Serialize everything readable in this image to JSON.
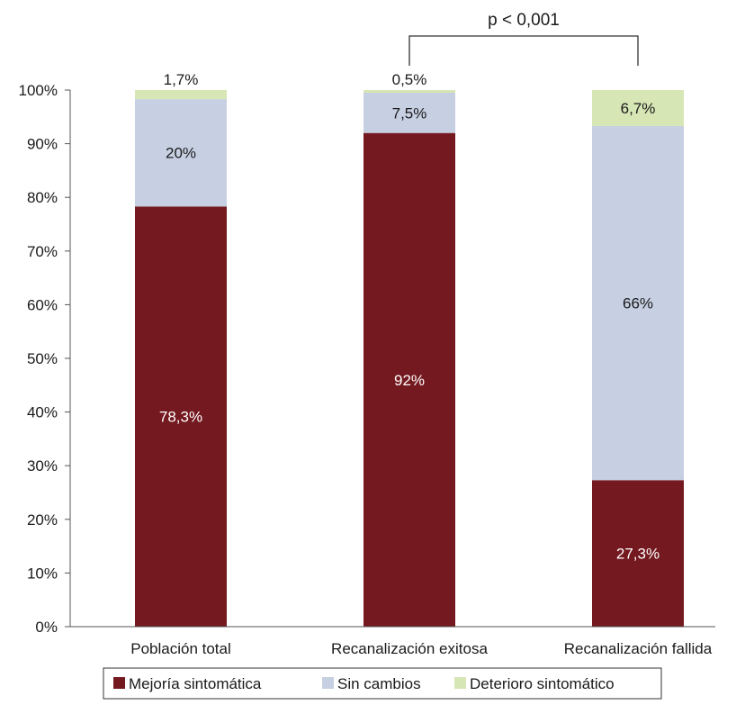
{
  "chart_data": {
    "type": "bar",
    "stacked": true,
    "categories": [
      "Población total",
      "Recanalización exitosa",
      "Recanalización fallida"
    ],
    "series": [
      {
        "name": "Mejoría sintomática",
        "color": "#74191f",
        "values": [
          78.3,
          92,
          27.3
        ],
        "labels": [
          "78,3%",
          "92%",
          "27,3%"
        ],
        "label_color": "#ffffff"
      },
      {
        "name": "Sin cambios",
        "color": "#c7d0e3",
        "values": [
          20,
          7.5,
          66
        ],
        "labels": [
          "20%",
          "7,5%",
          "66%"
        ],
        "label_color": "#1a1a1a"
      },
      {
        "name": "Deterioro sintomático",
        "color": "#d7e6b5",
        "values": [
          1.7,
          0.5,
          6.7
        ],
        "labels": [
          "1,7%",
          "0,5%",
          "6,7%"
        ],
        "label_color": "#1a1a1a"
      }
    ],
    "y_ticks": [
      "0%",
      "10%",
      "20%",
      "30%",
      "40%",
      "50%",
      "60%",
      "70%",
      "80%",
      "90%",
      "100%"
    ],
    "ylim": [
      0,
      100
    ],
    "annotation": {
      "text": "p < 0,001",
      "from_category": 1,
      "to_category": 2
    },
    "legend_position": "bottom",
    "grid": false
  }
}
